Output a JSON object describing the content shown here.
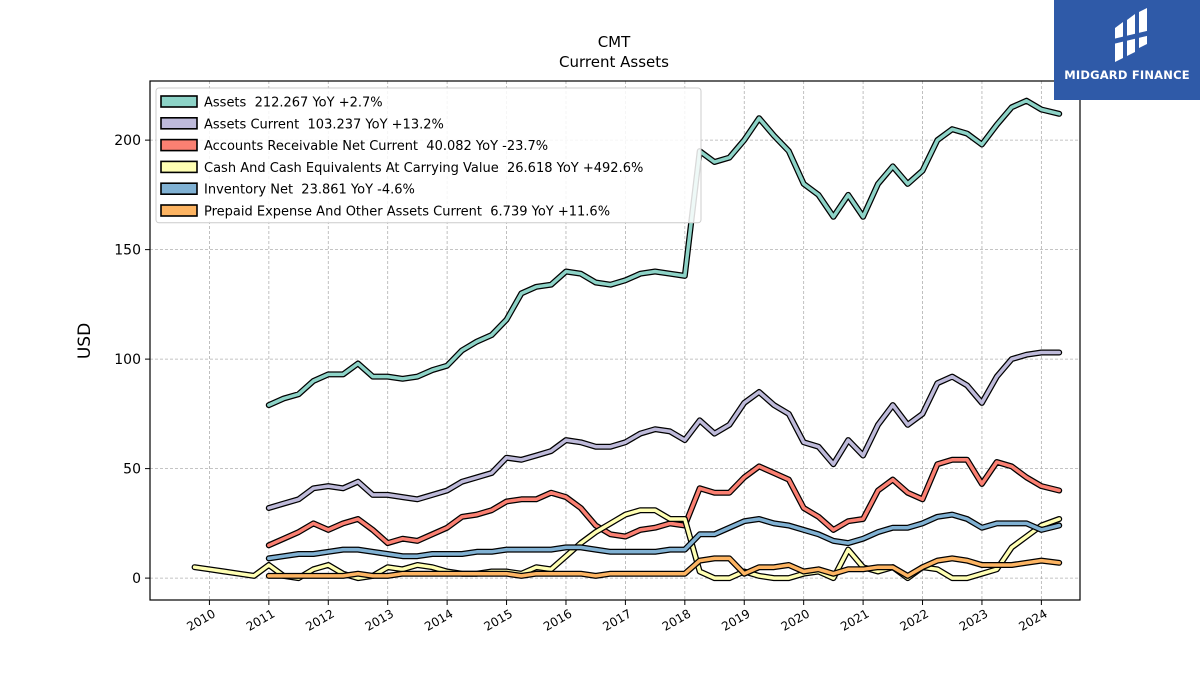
{
  "logo": {
    "text": "MIDGARD FINANCE",
    "icon": "midgard-logo-icon",
    "bg_color": "#2f5aa8"
  },
  "chart_data": {
    "type": "line",
    "title": "CMT",
    "subtitle": "Current  Assets",
    "xlabel": "",
    "ylabel": "USD",
    "xlim": [
      2009.0,
      2024.65
    ],
    "ylim": [
      -10,
      227
    ],
    "yticks": [
      0,
      50,
      100,
      150,
      200
    ],
    "xticks": [
      2010,
      2011,
      2012,
      2013,
      2014,
      2015,
      2016,
      2017,
      2018,
      2019,
      2020,
      2021,
      2022,
      2023,
      2024
    ],
    "grid": true,
    "legend_position": "top-left",
    "series": [
      {
        "name": "Assets  212.267 YoY +2.7%",
        "color": "#8dd3c7",
        "x": [
          2011.0,
          2011.25,
          2011.5,
          2011.75,
          2012.0,
          2012.25,
          2012.5,
          2012.75,
          2013.0,
          2013.25,
          2013.5,
          2013.75,
          2014.0,
          2014.25,
          2014.5,
          2014.75,
          2015.0,
          2015.25,
          2015.5,
          2015.75,
          2016.0,
          2016.25,
          2016.5,
          2016.75,
          2017.0,
          2017.25,
          2017.5,
          2017.75,
          2018.0,
          2018.25,
          2018.5,
          2018.75,
          2019.0,
          2019.25,
          2019.5,
          2019.75,
          2020.0,
          2020.25,
          2020.5,
          2020.75,
          2021.0,
          2021.25,
          2021.5,
          2021.75,
          2022.0,
          2022.25,
          2022.5,
          2022.75,
          2023.0,
          2023.25,
          2023.5,
          2023.75,
          2024.0,
          2024.3
        ],
        "y": [
          79,
          82,
          84,
          90,
          93,
          93,
          98,
          92,
          92,
          91,
          92,
          95,
          97,
          104,
          108,
          111,
          118,
          130,
          133,
          134,
          140,
          139,
          135,
          134,
          136,
          139,
          140,
          139,
          138,
          195,
          190,
          192,
          200,
          210,
          202,
          195,
          180,
          175,
          165,
          175,
          165,
          180,
          188,
          180,
          186,
          200,
          205,
          203,
          198,
          207,
          215,
          218,
          214,
          212
        ]
      },
      {
        "name": "Assets Current  103.237 YoY +13.2%",
        "color": "#bebada",
        "x": [
          2011.0,
          2011.25,
          2011.5,
          2011.75,
          2012.0,
          2012.25,
          2012.5,
          2012.75,
          2013.0,
          2013.25,
          2013.5,
          2013.75,
          2014.0,
          2014.25,
          2014.5,
          2014.75,
          2015.0,
          2015.25,
          2015.5,
          2015.75,
          2016.0,
          2016.25,
          2016.5,
          2016.75,
          2017.0,
          2017.25,
          2017.5,
          2017.75,
          2018.0,
          2018.25,
          2018.5,
          2018.75,
          2019.0,
          2019.25,
          2019.5,
          2019.75,
          2020.0,
          2020.25,
          2020.5,
          2020.75,
          2021.0,
          2021.25,
          2021.5,
          2021.75,
          2022.0,
          2022.25,
          2022.5,
          2022.75,
          2023.0,
          2023.25,
          2023.5,
          2023.75,
          2024.0,
          2024.3
        ],
        "y": [
          32,
          34,
          36,
          41,
          42,
          41,
          44,
          38,
          38,
          37,
          36,
          38,
          40,
          44,
          46,
          48,
          55,
          54,
          56,
          58,
          63,
          62,
          60,
          60,
          62,
          66,
          68,
          67,
          63,
          72,
          66,
          70,
          80,
          85,
          79,
          75,
          62,
          60,
          52,
          63,
          56,
          70,
          79,
          70,
          75,
          89,
          92,
          88,
          80,
          92,
          100,
          102,
          103,
          103
        ]
      },
      {
        "name": "Accounts Receivable Net Current  40.082 YoY -23.7%",
        "color": "#fb8072",
        "x": [
          2011.0,
          2011.25,
          2011.5,
          2011.75,
          2012.0,
          2012.25,
          2012.5,
          2012.75,
          2013.0,
          2013.25,
          2013.5,
          2013.75,
          2014.0,
          2014.25,
          2014.5,
          2014.75,
          2015.0,
          2015.25,
          2015.5,
          2015.75,
          2016.0,
          2016.25,
          2016.5,
          2016.75,
          2017.0,
          2017.25,
          2017.5,
          2017.75,
          2018.0,
          2018.25,
          2018.5,
          2018.75,
          2019.0,
          2019.25,
          2019.5,
          2019.75,
          2020.0,
          2020.25,
          2020.5,
          2020.75,
          2021.0,
          2021.25,
          2021.5,
          2021.75,
          2022.0,
          2022.25,
          2022.5,
          2022.75,
          2023.0,
          2023.25,
          2023.5,
          2023.75,
          2024.0,
          2024.3
        ],
        "y": [
          15,
          18,
          21,
          25,
          22,
          25,
          27,
          22,
          16,
          18,
          17,
          20,
          23,
          28,
          29,
          31,
          35,
          36,
          36,
          39,
          37,
          32,
          24,
          20,
          19,
          22,
          23,
          25,
          24,
          41,
          39,
          39,
          46,
          51,
          48,
          45,
          32,
          28,
          22,
          26,
          27,
          40,
          45,
          39,
          36,
          52,
          54,
          54,
          43,
          53,
          51,
          46,
          42,
          40
        ]
      },
      {
        "name": "Cash And Cash Equivalents At Carrying Value  26.618 YoY +492.6%",
        "color": "#ffffb3",
        "x": [
          2009.75,
          2010.0,
          2010.25,
          2010.5,
          2010.75,
          2011.0,
          2011.25,
          2011.5,
          2011.75,
          2012.0,
          2012.25,
          2012.5,
          2012.75,
          2013.0,
          2013.25,
          2013.5,
          2013.75,
          2014.0,
          2014.25,
          2014.5,
          2014.75,
          2015.0,
          2015.25,
          2015.5,
          2015.75,
          2016.0,
          2016.25,
          2016.5,
          2016.75,
          2017.0,
          2017.25,
          2017.5,
          2017.75,
          2018.0,
          2018.25,
          2018.5,
          2018.75,
          2019.0,
          2019.25,
          2019.5,
          2019.75,
          2020.0,
          2020.25,
          2020.5,
          2020.75,
          2021.0,
          2021.25,
          2021.5,
          2021.75,
          2022.0,
          2022.25,
          2022.5,
          2022.75,
          2023.0,
          2023.25,
          2023.5,
          2023.75,
          2024.0,
          2024.3
        ],
        "y": [
          5,
          4,
          3,
          2,
          1,
          6,
          1,
          0,
          4,
          6,
          2,
          0,
          1,
          5,
          4,
          6,
          5,
          3,
          2,
          2,
          3,
          3,
          2,
          5,
          4,
          10,
          16,
          21,
          25,
          29,
          31,
          31,
          27,
          27,
          3,
          0,
          0,
          3,
          1,
          0,
          0,
          2,
          3,
          0,
          13,
          5,
          3,
          5,
          0,
          5,
          4,
          0,
          0,
          2,
          4,
          14,
          19,
          24,
          27
        ]
      },
      {
        "name": "Inventory Net  23.861 YoY -4.6%",
        "color": "#80b1d3",
        "x": [
          2011.0,
          2011.25,
          2011.5,
          2011.75,
          2012.0,
          2012.25,
          2012.5,
          2012.75,
          2013.0,
          2013.25,
          2013.5,
          2013.75,
          2014.0,
          2014.25,
          2014.5,
          2014.75,
          2015.0,
          2015.25,
          2015.5,
          2015.75,
          2016.0,
          2016.25,
          2016.5,
          2016.75,
          2017.0,
          2017.25,
          2017.5,
          2017.75,
          2018.0,
          2018.25,
          2018.5,
          2018.75,
          2019.0,
          2019.25,
          2019.5,
          2019.75,
          2020.0,
          2020.25,
          2020.5,
          2020.75,
          2021.0,
          2021.25,
          2021.5,
          2021.75,
          2022.0,
          2022.25,
          2022.5,
          2022.75,
          2023.0,
          2023.25,
          2023.5,
          2023.75,
          2024.0,
          2024.3
        ],
        "y": [
          9,
          10,
          11,
          11,
          12,
          13,
          13,
          12,
          11,
          10,
          10,
          11,
          11,
          11,
          12,
          12,
          13,
          13,
          13,
          13,
          14,
          14,
          13,
          12,
          12,
          12,
          12,
          13,
          13,
          20,
          20,
          23,
          26,
          27,
          25,
          24,
          22,
          20,
          17,
          16,
          18,
          21,
          23,
          23,
          25,
          28,
          29,
          27,
          23,
          25,
          25,
          25,
          22,
          24
        ]
      },
      {
        "name": "Prepaid Expense And Other Assets Current  6.739 YoY +11.6%",
        "color": "#fdb462",
        "x": [
          2011.0,
          2011.25,
          2011.5,
          2011.75,
          2012.0,
          2012.25,
          2012.5,
          2012.75,
          2013.0,
          2013.25,
          2013.5,
          2013.75,
          2014.0,
          2014.25,
          2014.5,
          2014.75,
          2015.0,
          2015.25,
          2015.5,
          2015.75,
          2016.0,
          2016.25,
          2016.5,
          2016.75,
          2017.0,
          2017.25,
          2017.5,
          2017.75,
          2018.0,
          2018.25,
          2018.5,
          2018.75,
          2019.0,
          2019.25,
          2019.5,
          2019.75,
          2020.0,
          2020.25,
          2020.5,
          2020.75,
          2021.0,
          2021.25,
          2021.5,
          2021.75,
          2022.0,
          2022.25,
          2022.5,
          2022.75,
          2023.0,
          2023.25,
          2023.5,
          2023.75,
          2024.0,
          2024.3
        ],
        "y": [
          1,
          1,
          1,
          1,
          1,
          1,
          2,
          1,
          1,
          2,
          2,
          2,
          2,
          2,
          2,
          2,
          2,
          1,
          2,
          2,
          2,
          2,
          1,
          2,
          2,
          2,
          2,
          2,
          2,
          8,
          9,
          9,
          2,
          5,
          5,
          6,
          3,
          4,
          2,
          4,
          4,
          5,
          5,
          1,
          5,
          8,
          9,
          8,
          6,
          6,
          6,
          7,
          8,
          7
        ]
      }
    ]
  }
}
